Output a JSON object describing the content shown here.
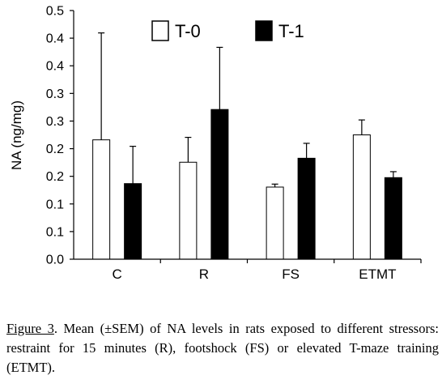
{
  "chart_data": {
    "type": "bar",
    "ylabel": "NA (ng/mg)",
    "xlabel": "",
    "ylim": [
      0,
      0.5
    ],
    "y_tick_labels": [
      "0.0",
      "0.1",
      "0.1",
      "0.2",
      "0.2",
      "0.3",
      "0.3",
      "0.4",
      "0.4",
      "0.5"
    ],
    "categories": [
      "C",
      "R",
      "FS",
      "ETMT"
    ],
    "series": [
      {
        "name": "T-0",
        "values": [
          0.24,
          0.195,
          0.145,
          0.25
        ],
        "errors": [
          0.215,
          0.05,
          0.006,
          0.03
        ],
        "color": "#ffffff"
      },
      {
        "name": "T-1",
        "values": [
          0.152,
          0.301,
          0.203,
          0.164
        ],
        "errors": [
          0.075,
          0.125,
          0.03,
          0.012
        ],
        "color": "#000000"
      }
    ],
    "legend_position": "top",
    "grid": false
  },
  "caption": {
    "ref": "Figure 3",
    "text": ". Mean (±SEM) of NA levels in rats exposed to different stressors: restraint for 15 minutes (R), footshock (FS) or elevated T-maze training (ETMT)."
  }
}
